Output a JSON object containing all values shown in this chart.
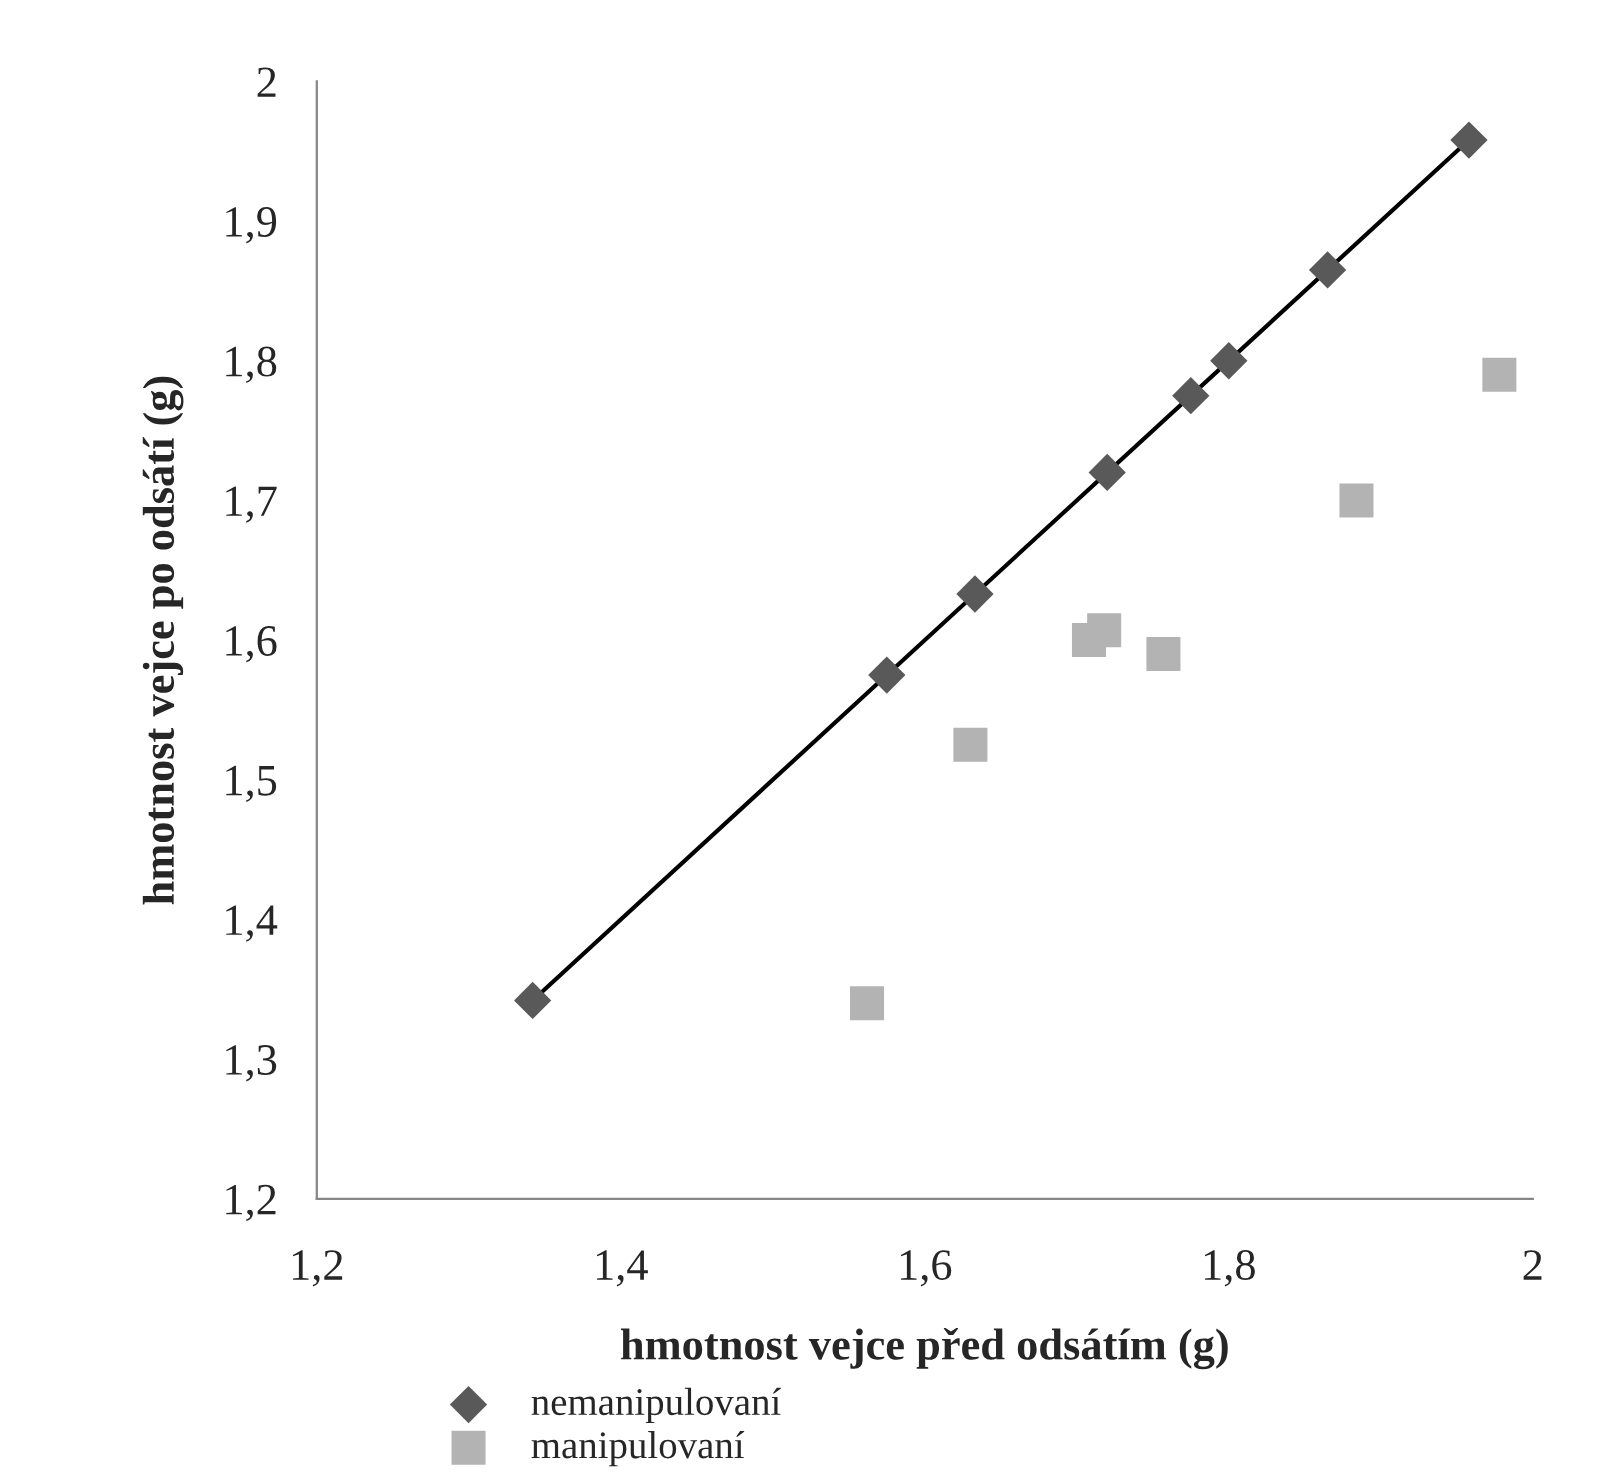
{
  "chart_data": {
    "type": "scatter",
    "xlabel": "hmotnost vejce před odsátím (g)",
    "ylabel": "hmotnost vejce po odsátí (g)",
    "xlim": [
      1.2,
      2
    ],
    "ylim": [
      1.2,
      2
    ],
    "xticks": [
      {
        "value": 1.2,
        "label": "1,2"
      },
      {
        "value": 1.4,
        "label": "1,4"
      },
      {
        "value": 1.6,
        "label": "1,6"
      },
      {
        "value": 1.8,
        "label": "1,8"
      },
      {
        "value": 2,
        "label": "2"
      }
    ],
    "yticks": [
      {
        "value": 1.2,
        "label": "1,2"
      },
      {
        "value": 1.3,
        "label": "1,3"
      },
      {
        "value": 1.4,
        "label": "1,4"
      },
      {
        "value": 1.5,
        "label": "1,5"
      },
      {
        "value": 1.6,
        "label": "1,6"
      },
      {
        "value": 1.7,
        "label": "1,7"
      },
      {
        "value": 1.8,
        "label": "1,8"
      },
      {
        "value": 1.9,
        "label": "1,9"
      },
      {
        "value": 2,
        "label": "2"
      }
    ],
    "grid": false,
    "legend": "bottom left",
    "series": [
      {
        "name": "nemanipulovaní",
        "color": "#595959",
        "marker": "diamond",
        "x": [
          1.342,
          1.575,
          1.633,
          1.72,
          1.775,
          1.8,
          1.865,
          1.958
        ],
        "values": [
          1.342,
          1.575,
          1.633,
          1.72,
          1.775,
          1.8,
          1.865,
          1.958
        ]
      },
      {
        "name": "manipulovaní",
        "color": "#b3b3b3",
        "marker": "square",
        "x": [
          1.562,
          1.63,
          1.708,
          1.718,
          1.757,
          1.884,
          1.978
        ],
        "values": [
          1.34,
          1.525,
          1.6,
          1.607,
          1.59,
          1.7,
          1.79
        ]
      },
      {
        "type": "line",
        "color": "#000000",
        "marker": "none",
        "line_style": "solid",
        "x": [
          1.342,
          1.958
        ],
        "values": [
          1.342,
          1.958
        ]
      }
    ]
  }
}
